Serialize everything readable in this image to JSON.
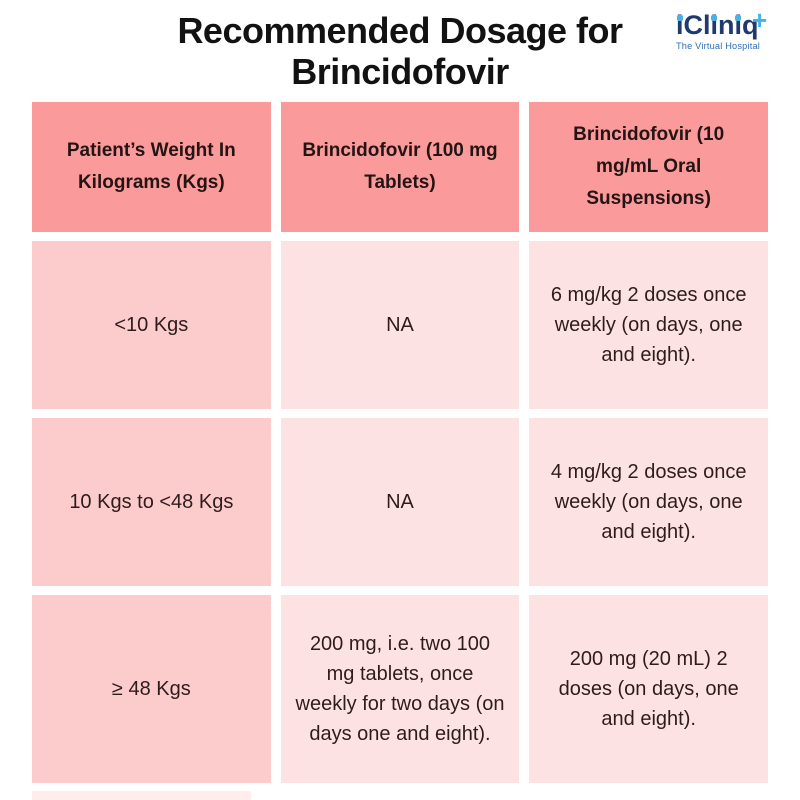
{
  "page": {
    "title_line1": "Recommended Dosage for",
    "title_line2": "Brincidofovir"
  },
  "logo": {
    "name": "iCliniq",
    "plus": "+",
    "tagline": "The Virtual Hospital",
    "colors": {
      "navy": "#1e3a6e",
      "light_blue": "#47b2e8",
      "tagline_blue": "#2e6db5"
    }
  },
  "table": {
    "headers": [
      "Patient’s Weight In Kilograms (Kgs)",
      "Brincidofovir (100 mg Tablets)",
      "Brincidofovir (10 mg/mL Oral Suspensions)"
    ],
    "rows": [
      [
        "<10 Kgs",
        "NA",
        "6 mg/kg 2 doses once weekly (on days, one and eight)."
      ],
      [
        "10 Kgs to <48 Kgs",
        "NA",
        "4 mg/kg 2 doses once weekly (on days, one and eight)."
      ],
      [
        "≥ 48 Kgs",
        "200 mg, i.e. two 100 mg tablets, once weekly for two days (on days one and eight).",
        "200 mg (20 mL) 2 doses (on days, one and eight)."
      ]
    ],
    "colors": {
      "header_bg": "#fb9a9b",
      "col1_body_bg": "#fccbcc",
      "body_bg": "#fde2e3",
      "text": "#2e1c1c"
    }
  }
}
